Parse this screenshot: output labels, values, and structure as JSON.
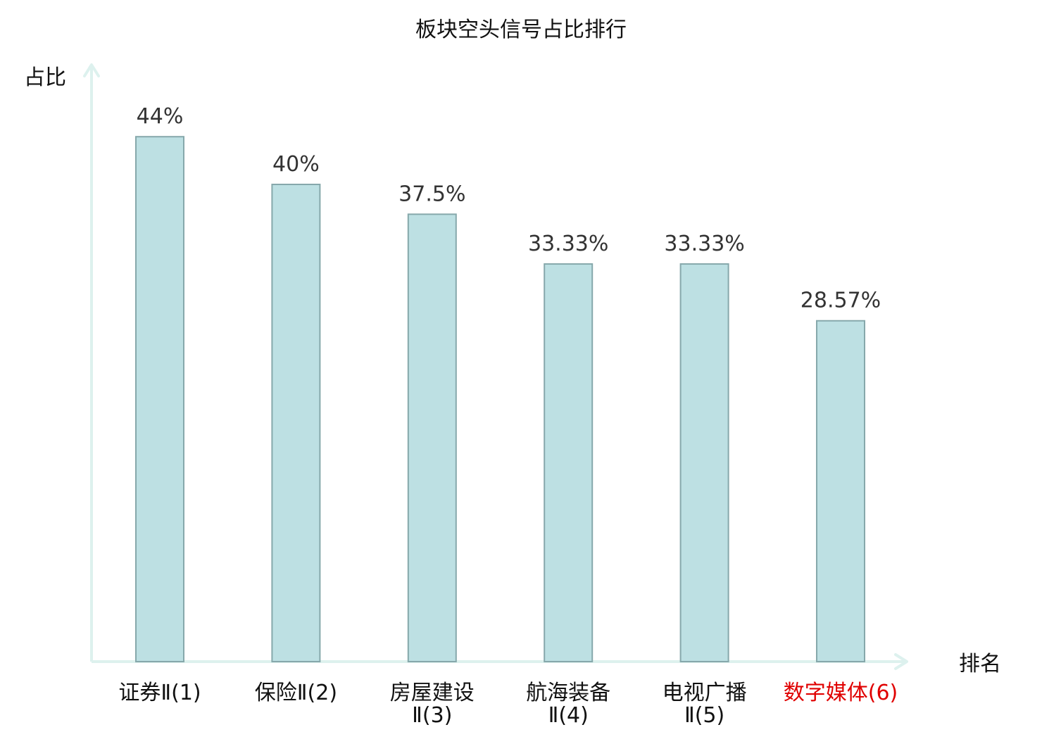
{
  "chart_data": {
    "type": "bar",
    "title": "板块空头信号占比排行",
    "ylabel": "占比",
    "xlabel": "排名",
    "ylim": [
      0,
      50
    ],
    "grid": false,
    "legend": "none",
    "categories": [
      [
        "证券Ⅱ(1)"
      ],
      [
        "保险Ⅱ(2)"
      ],
      [
        "房屋建设",
        "Ⅱ(3)"
      ],
      [
        "航海装备",
        "Ⅱ(4)"
      ],
      [
        "电视广播",
        "Ⅱ(5)"
      ],
      [
        "数字媒体(6)"
      ]
    ],
    "values": [
      44,
      40,
      37.5,
      33.33,
      33.33,
      28.57
    ],
    "value_labels": [
      "44%",
      "40%",
      "37.5%",
      "33.33%",
      "33.33%",
      "28.57%"
    ],
    "highlight_index": 5,
    "colors": {
      "bar_fill": "#bde0e3",
      "bar_stroke": "#86a8ab",
      "axis": "#ddf1ee",
      "tick_text": "#111111",
      "highlight_text": "#e00000"
    }
  }
}
